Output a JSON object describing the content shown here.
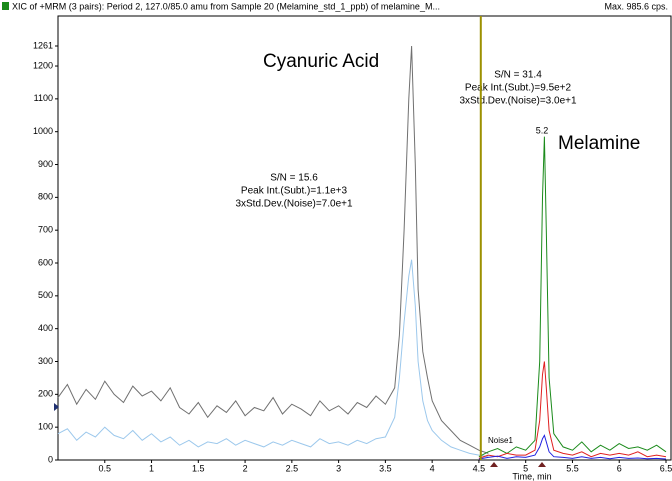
{
  "chart_data": {
    "type": "line",
    "title": "XIC of +MRM (3 pairs): Period 2, 127.0/85.0 amu from Sample 20 (Melamine_std_1_ppb) of melamine_M...",
    "max_label": "Max. 985.6 cps.",
    "x_label": "Time, min",
    "xlim": [
      0,
      6.5
    ],
    "ylim": [
      0,
      1261
    ],
    "xticks": [
      0.5,
      1.0,
      1.5,
      2.0,
      2.5,
      3.0,
      3.5,
      4.0,
      4.5,
      5.0,
      5.5,
      6.0,
      6.5
    ],
    "yticks": [
      0,
      100,
      200,
      300,
      400,
      500,
      600,
      700,
      800,
      900,
      1000,
      1100,
      1200,
      1261
    ],
    "period_marker_x": 4.52,
    "period_marker_color": "#9c9000",
    "annotations": {
      "cyanuric": "Cyanuric Acid",
      "melamine": "Melamine",
      "sn1": "S/N = 15.6",
      "peak1": "Peak Int.(Subt.)=1.1e+3",
      "noise1": "3xStd.Dev.(Noise)=7.0e+1",
      "sn2": "S/N = 31.4",
      "peak2": "Peak Int.(Subt.)=9.5e+2",
      "noise2": "3xStd.Dev.(Noise)=3.0e+1",
      "rt": "5.2",
      "noise_tag": "Noise1"
    },
    "series": [
      {
        "color": "#707070",
        "x": [
          0.0,
          0.1,
          0.2,
          0.3,
          0.4,
          0.5,
          0.6,
          0.7,
          0.8,
          0.9,
          1.0,
          1.1,
          1.2,
          1.3,
          1.4,
          1.5,
          1.6,
          1.7,
          1.8,
          1.9,
          2.0,
          2.1,
          2.2,
          2.3,
          2.4,
          2.5,
          2.6,
          2.7,
          2.8,
          2.9,
          3.0,
          3.1,
          3.2,
          3.3,
          3.4,
          3.5,
          3.6,
          3.65,
          3.7,
          3.75,
          3.78,
          3.82,
          3.85,
          3.9,
          3.95,
          4.0,
          4.1,
          4.2,
          4.3,
          4.4,
          4.5,
          4.6
        ],
        "values": [
          190,
          230,
          170,
          215,
          185,
          240,
          200,
          175,
          225,
          195,
          210,
          180,
          220,
          160,
          140,
          175,
          130,
          165,
          145,
          180,
          135,
          160,
          150,
          190,
          140,
          170,
          155,
          135,
          180,
          150,
          165,
          140,
          175,
          160,
          195,
          170,
          220,
          380,
          700,
          1100,
          1261,
          900,
          520,
          330,
          250,
          180,
          120,
          90,
          60,
          45,
          30,
          20
        ]
      },
      {
        "color": "#9cc8ec",
        "x": [
          0.0,
          0.1,
          0.2,
          0.3,
          0.4,
          0.5,
          0.6,
          0.7,
          0.8,
          0.9,
          1.0,
          1.1,
          1.2,
          1.3,
          1.4,
          1.5,
          1.6,
          1.7,
          1.8,
          1.9,
          2.0,
          2.1,
          2.2,
          2.3,
          2.4,
          2.5,
          2.6,
          2.7,
          2.8,
          2.9,
          3.0,
          3.1,
          3.2,
          3.3,
          3.4,
          3.5,
          3.6,
          3.65,
          3.7,
          3.75,
          3.78,
          3.82,
          3.85,
          3.9,
          3.95,
          4.0,
          4.1,
          4.2,
          4.3,
          4.4,
          4.5,
          4.6
        ],
        "values": [
          80,
          95,
          60,
          85,
          70,
          100,
          75,
          65,
          90,
          60,
          80,
          55,
          70,
          45,
          60,
          40,
          55,
          50,
          65,
          45,
          60,
          50,
          40,
          55,
          45,
          60,
          50,
          40,
          65,
          50,
          55,
          45,
          60,
          50,
          65,
          70,
          130,
          250,
          420,
          560,
          610,
          470,
          300,
          180,
          120,
          90,
          60,
          40,
          30,
          20,
          15,
          10
        ]
      },
      {
        "color": "#1a8a1a",
        "x": [
          4.5,
          4.6,
          4.7,
          4.8,
          4.9,
          5.0,
          5.1,
          5.15,
          5.18,
          5.2,
          5.22,
          5.25,
          5.3,
          5.4,
          5.5,
          5.6,
          5.7,
          5.8,
          5.9,
          6.0,
          6.1,
          6.2,
          6.3,
          6.4,
          6.5
        ],
        "values": [
          10,
          25,
          35,
          20,
          40,
          30,
          60,
          300,
          800,
          985,
          700,
          250,
          80,
          40,
          30,
          55,
          25,
          45,
          30,
          50,
          35,
          40,
          30,
          45,
          25
        ]
      },
      {
        "color": "#e02020",
        "x": [
          4.5,
          4.6,
          4.7,
          4.8,
          4.9,
          5.0,
          5.1,
          5.15,
          5.18,
          5.2,
          5.22,
          5.25,
          5.3,
          5.4,
          5.5,
          5.6,
          5.7,
          5.8,
          5.9,
          6.0,
          6.1,
          6.2,
          6.3,
          6.4,
          6.5
        ],
        "values": [
          5,
          15,
          10,
          20,
          15,
          15,
          30,
          120,
          260,
          300,
          220,
          90,
          30,
          20,
          15,
          25,
          10,
          20,
          15,
          20,
          15,
          25,
          10,
          15,
          10
        ]
      },
      {
        "color": "#2020e0",
        "x": [
          4.5,
          4.6,
          4.7,
          4.8,
          4.9,
          5.0,
          5.1,
          5.15,
          5.18,
          5.2,
          5.22,
          5.25,
          5.3,
          5.4,
          5.5,
          5.6,
          5.7,
          5.8,
          5.9,
          6.0,
          6.1,
          6.2,
          6.3,
          6.4,
          6.5
        ],
        "values": [
          3,
          8,
          12,
          5,
          10,
          8,
          15,
          40,
          65,
          75,
          55,
          25,
          10,
          8,
          5,
          10,
          5,
          8,
          4,
          8,
          5,
          6,
          4,
          5,
          3
        ]
      }
    ]
  }
}
